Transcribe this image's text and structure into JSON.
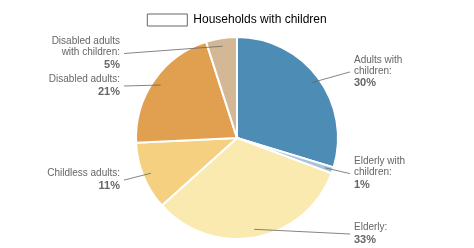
{
  "chart_data": {
    "type": "pie",
    "categories": [
      "Adults with\nchildren:",
      "Elderly with\nchildren:",
      "Elderly:",
      "Childless adults:",
      "Disabled adults:",
      "Disabled adults\nwith children:"
    ],
    "series": [
      {
        "name": "Households with children",
        "values": [
          30,
          1,
          33,
          11,
          21,
          5
        ],
        "value_labels": [
          "30%",
          "1%",
          "33%",
          "11%",
          "21%",
          "5%"
        ],
        "colors": [
          "#4d8db5",
          "#a8c4dc",
          "#faeab0",
          "#f5d080",
          "#e0a050",
          "#d4b896"
        ]
      }
    ],
    "legend": "top",
    "data_labels": true
  }
}
